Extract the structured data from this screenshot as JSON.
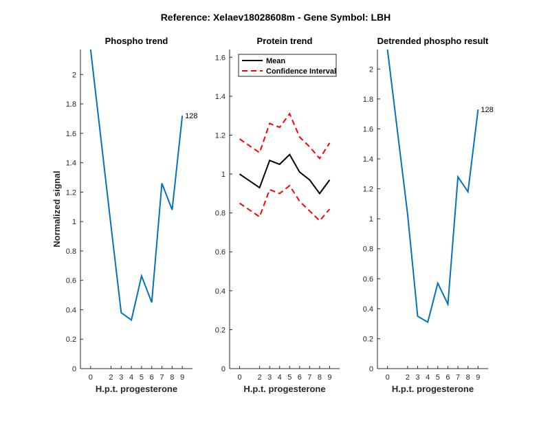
{
  "figure_title": "Reference:  Xelaev18028608m - Gene Symbol:  LBH",
  "chart_data": [
    {
      "type": "line",
      "title": "Phospho trend",
      "xlabel": "H.p.t. progesterone",
      "ylabel": "Normalized signal",
      "x": [
        0,
        2,
        3,
        4,
        5,
        6,
        7,
        8,
        9
      ],
      "x_ticks": [
        "0",
        "2",
        "3",
        "4",
        "5",
        "6",
        "7",
        "8",
        "9"
      ],
      "ylim": [
        0,
        2.17
      ],
      "y_ticks": [
        "0",
        "0.2",
        "0.4",
        "0.6",
        "0.8",
        "1",
        "1.2",
        "1.4",
        "1.6",
        "1.8",
        "2"
      ],
      "series": [
        {
          "name": "",
          "color": "#0072BD",
          "dash": "",
          "values": [
            2.17,
            0.97,
            0.38,
            0.33,
            0.63,
            0.45,
            1.26,
            1.08,
            1.72
          ]
        }
      ],
      "annotation": {
        "text": "128",
        "point": 8
      },
      "legend": null,
      "grid": false
    },
    {
      "type": "line",
      "title": "Protein trend",
      "xlabel": "H.p.t. progesterone",
      "ylabel": "",
      "x": [
        0,
        2,
        3,
        4,
        5,
        6,
        7,
        8,
        9
      ],
      "x_ticks": [
        "0",
        "2",
        "3",
        "4",
        "5",
        "6",
        "7",
        "8",
        "9"
      ],
      "ylim": [
        0,
        1.64
      ],
      "y_ticks": [
        "0",
        "0.2",
        "0.4",
        "0.6",
        "0.8",
        "1",
        "1.2",
        "1.4",
        "1.6"
      ],
      "series": [
        {
          "name": "Mean",
          "color": "#000000",
          "dash": "",
          "values": [
            1.0,
            0.93,
            1.07,
            1.05,
            1.1,
            1.01,
            0.97,
            0.9,
            0.97
          ]
        },
        {
          "name": "Confidence Interval",
          "color": "#FF0000",
          "dash": "8,5",
          "values": [
            1.18,
            1.11,
            1.26,
            1.24,
            1.31,
            1.19,
            1.14,
            1.08,
            1.16
          ]
        },
        {
          "name": "",
          "color": "#FF0000",
          "dash": "8,5",
          "values": [
            0.85,
            0.78,
            0.92,
            0.9,
            0.94,
            0.86,
            0.81,
            0.76,
            0.82
          ]
        }
      ],
      "annotation": null,
      "legend": {
        "position": "top-left",
        "entries": [
          0,
          1
        ]
      },
      "grid": false
    },
    {
      "type": "line",
      "title": "Detrended phospho result",
      "xlabel": "H.p.t. progesterone",
      "ylabel": "",
      "x": [
        0,
        2,
        3,
        4,
        5,
        6,
        7,
        8,
        9
      ],
      "x_ticks": [
        "0",
        "2",
        "3",
        "4",
        "5",
        "6",
        "7",
        "8",
        "9"
      ],
      "ylim": [
        0,
        2.13
      ],
      "y_ticks": [
        "0",
        "0.2",
        "0.4",
        "0.6",
        "0.8",
        "1",
        "1.2",
        "1.4",
        "1.6",
        "1.8",
        "2"
      ],
      "series": [
        {
          "name": "",
          "color": "#0072BD",
          "dash": "",
          "values": [
            2.13,
            1.03,
            0.35,
            0.31,
            0.57,
            0.43,
            1.28,
            1.18,
            1.73
          ]
        }
      ],
      "annotation": {
        "text": "128",
        "point": 8
      },
      "legend": null,
      "grid": false
    }
  ]
}
